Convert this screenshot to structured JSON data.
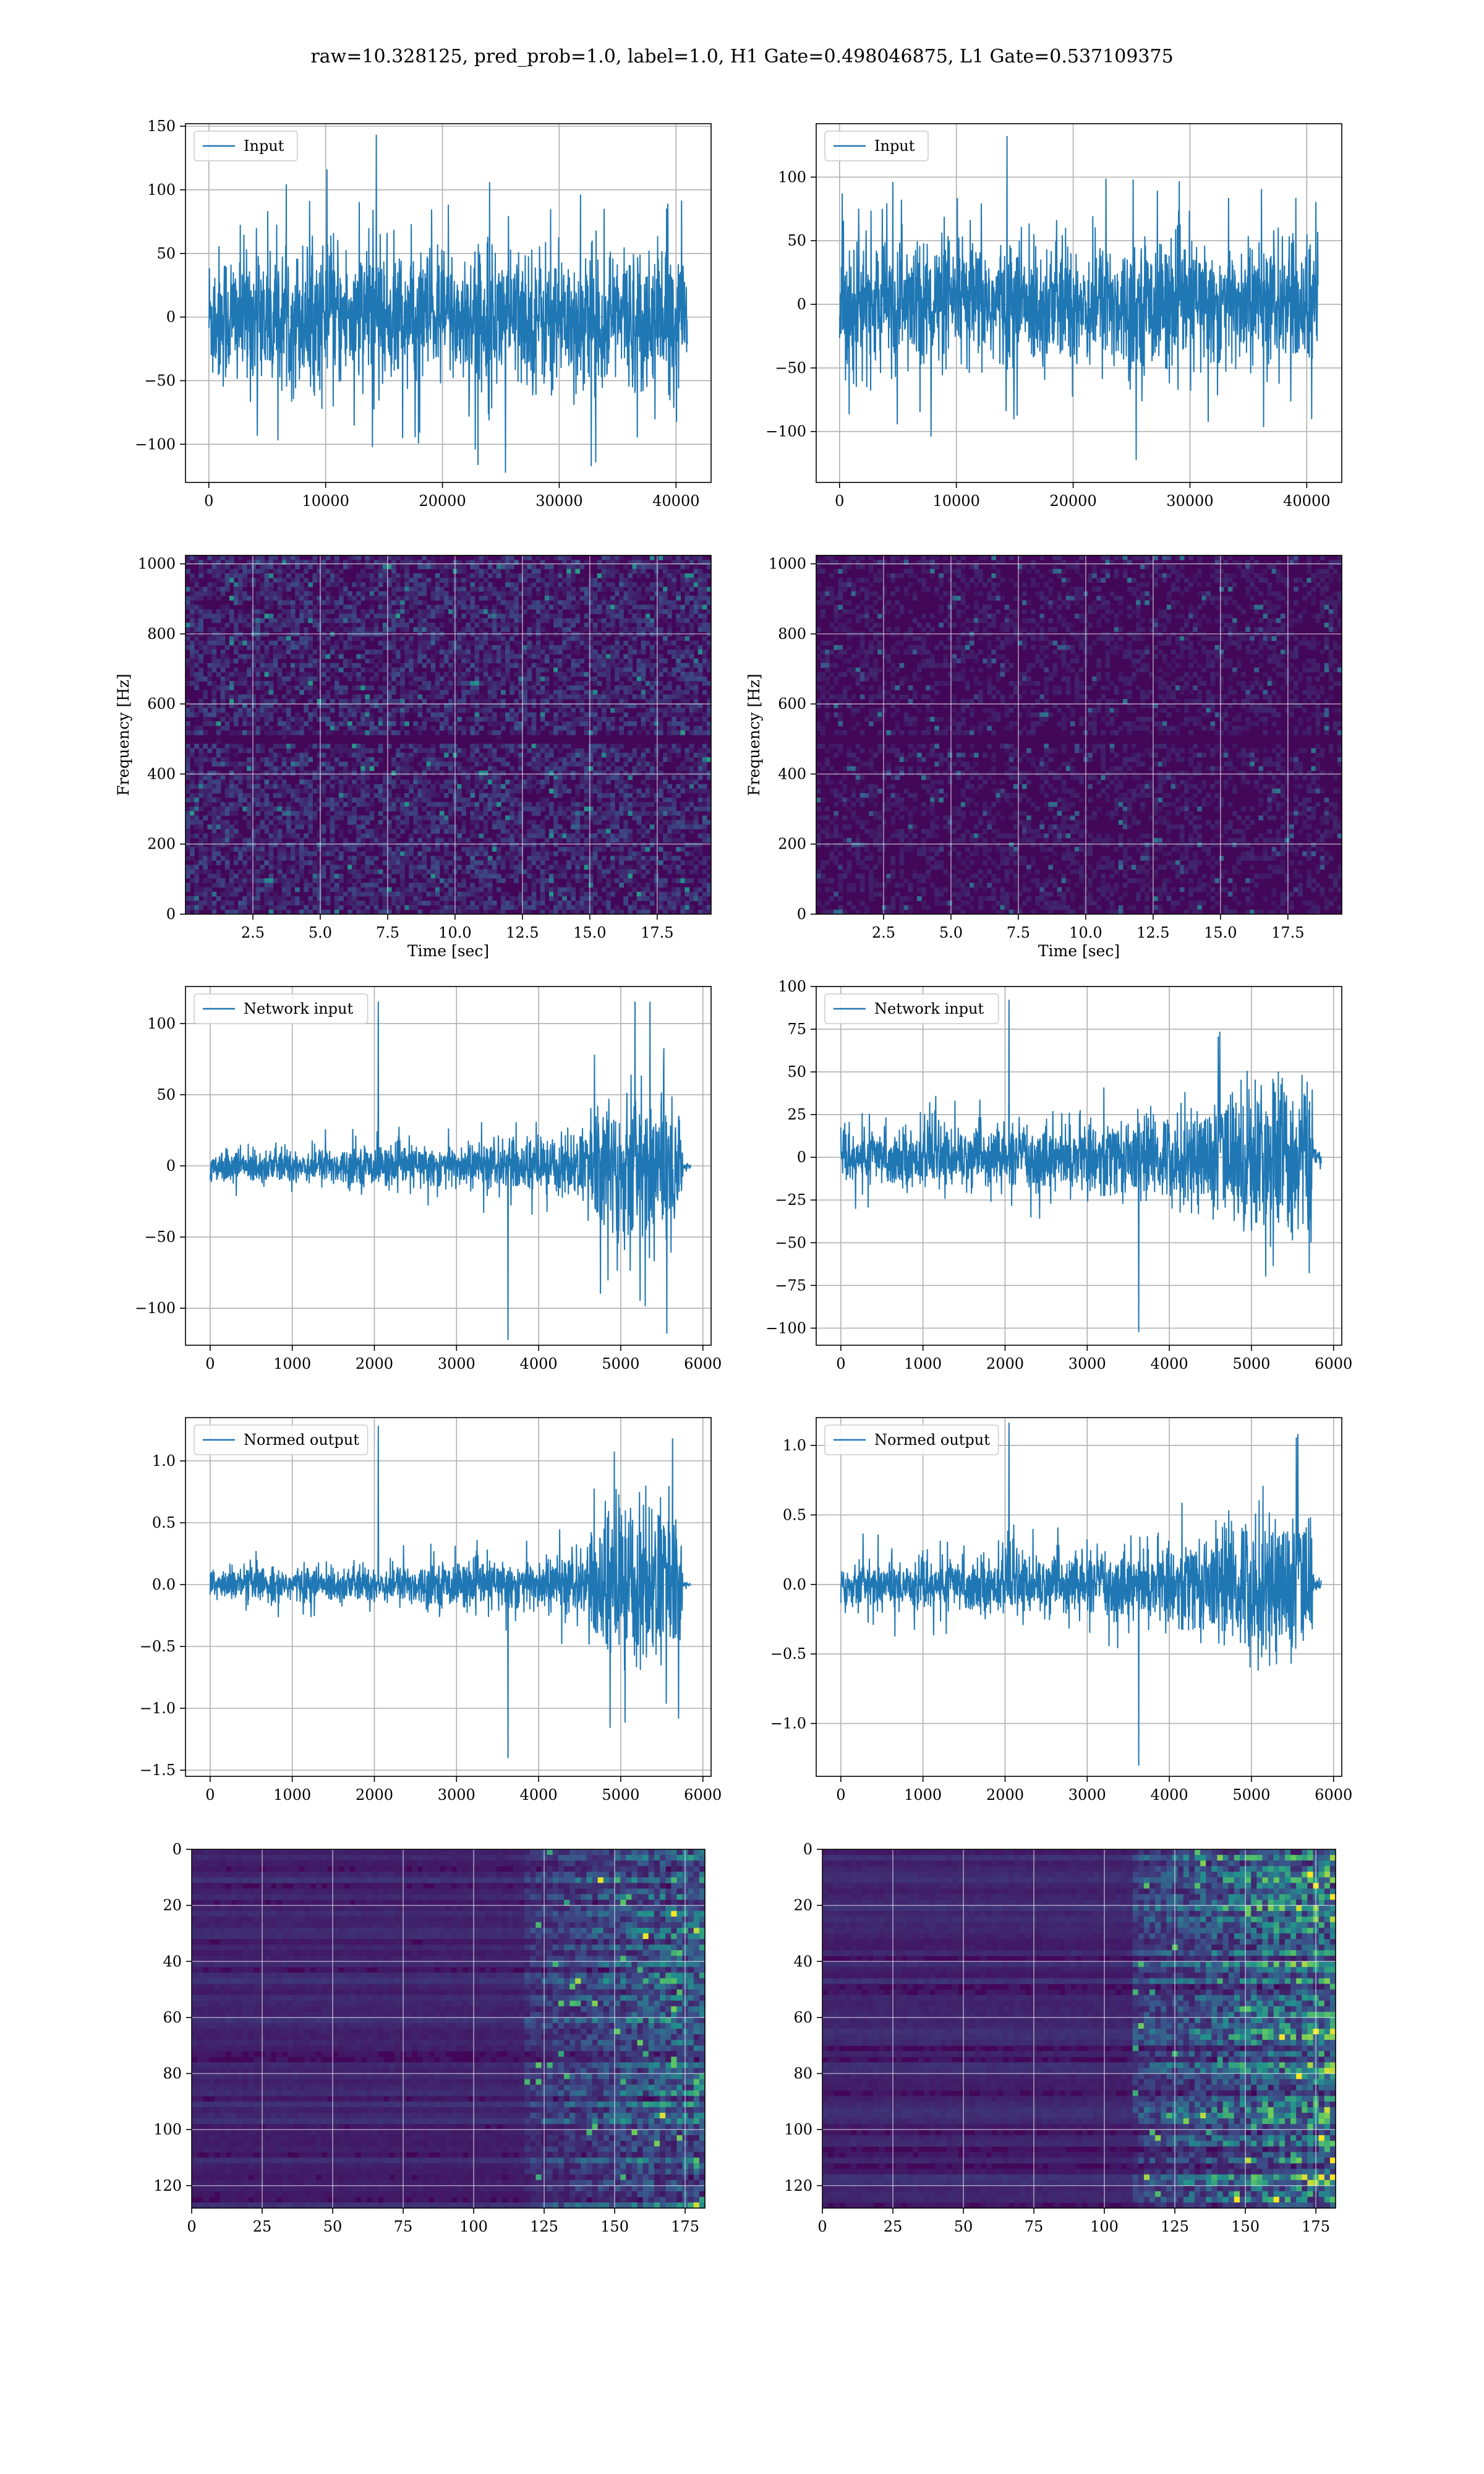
{
  "figure": {
    "title": "raw=10.328125, pred_prob=1.0, label=1.0, H1 Gate=0.498046875, L1 Gate=0.537109375"
  },
  "colors": {
    "line": "#1f77b4",
    "grid": "#b0b0b0",
    "colormap": "viridis"
  },
  "chart_data": [
    {
      "type": "line",
      "legend": "Input",
      "legend_placement": "upper-left",
      "grid": true,
      "xlim": [
        -2000,
        43000
      ],
      "ylim": [
        -130,
        152
      ],
      "xticks": [
        0,
        10000,
        20000,
        30000,
        40000
      ],
      "yticks": [
        -100,
        -50,
        0,
        50,
        100,
        150
      ],
      "x": [
        0,
        40960
      ],
      "envelope": {
        "typical_amplitude": 65,
        "max": 143,
        "min": -122
      }
    },
    {
      "type": "line",
      "legend": "Input",
      "legend_placement": "upper-left",
      "grid": true,
      "xlim": [
        -2000,
        43000
      ],
      "ylim": [
        -140,
        142
      ],
      "xticks": [
        0,
        10000,
        20000,
        30000,
        40000
      ],
      "yticks": [
        -100,
        -50,
        0,
        50,
        100
      ],
      "x": [
        0,
        40960
      ],
      "envelope": {
        "typical_amplitude": 60,
        "max": 132,
        "min": -122
      }
    },
    {
      "type": "heatmap",
      "xlabel": "Time [sec]",
      "ylabel": "Frequency [Hz]",
      "grid": true,
      "xlim": [
        0,
        19.5
      ],
      "ylim": [
        0,
        1024
      ],
      "xticks": [
        2.5,
        5.0,
        7.5,
        10.0,
        12.5,
        15.0,
        17.5
      ],
      "yticks": [
        0,
        200,
        400,
        600,
        800,
        1000
      ],
      "features": {
        "dark_band_hz": 500,
        "noise_level": 0.35
      }
    },
    {
      "type": "heatmap",
      "xlabel": "Time [sec]",
      "ylabel": "Frequency [Hz]",
      "grid": true,
      "xlim": [
        0,
        19.5
      ],
      "ylim": [
        0,
        1024
      ],
      "xticks": [
        2.5,
        5.0,
        7.5,
        10.0,
        12.5,
        15.0,
        17.5
      ],
      "yticks": [
        0,
        200,
        400,
        600,
        800,
        1000
      ],
      "features": {
        "dark_band_hz": 500,
        "noise_level": 0.22
      }
    },
    {
      "type": "line",
      "legend": "Network input",
      "legend_placement": "upper-left",
      "grid": true,
      "xlim": [
        -300,
        6100
      ],
      "ylim": [
        -126,
        126
      ],
      "xticks": [
        0,
        1000,
        2000,
        3000,
        4000,
        5000,
        6000
      ],
      "yticks": [
        -100,
        -50,
        0,
        50,
        100
      ],
      "x": [
        0,
        5850
      ],
      "envelope": [
        {
          "x": 0,
          "amp": 14
        },
        {
          "x": 1000,
          "amp": 15
        },
        {
          "x": 2000,
          "amp": 16
        },
        {
          "x": 3000,
          "amp": 19
        },
        {
          "x": 4000,
          "amp": 23
        },
        {
          "x": 4600,
          "amp": 30
        },
        {
          "x": 4720,
          "amp": 60
        },
        {
          "x": 5000,
          "amp": 75
        },
        {
          "x": 5400,
          "amp": 70
        },
        {
          "x": 5730,
          "amp": 65
        },
        {
          "x": 5760,
          "amp": 3
        },
        {
          "x": 5850,
          "amp": 2
        }
      ],
      "max": 115,
      "min": -122
    },
    {
      "type": "line",
      "legend": "Network input",
      "legend_placement": "upper-left",
      "grid": true,
      "xlim": [
        -300,
        6100
      ],
      "ylim": [
        -110,
        100
      ],
      "xticks": [
        0,
        1000,
        2000,
        3000,
        4000,
        5000,
        6000
      ],
      "yticks": [
        -100,
        -75,
        -50,
        -25,
        0,
        25,
        50,
        75,
        100
      ],
      "x": [
        0,
        5850
      ],
      "envelope": [
        {
          "x": 0,
          "amp": 18
        },
        {
          "x": 1000,
          "amp": 20
        },
        {
          "x": 2000,
          "amp": 22
        },
        {
          "x": 3000,
          "amp": 24
        },
        {
          "x": 4000,
          "amp": 30
        },
        {
          "x": 4600,
          "amp": 42
        },
        {
          "x": 5000,
          "amp": 55
        },
        {
          "x": 5400,
          "amp": 58
        },
        {
          "x": 5730,
          "amp": 55
        },
        {
          "x": 5760,
          "amp": 6
        },
        {
          "x": 5850,
          "amp": 5
        }
      ],
      "max": 92,
      "min": -102
    },
    {
      "type": "line",
      "legend": "Normed output",
      "legend_placement": "upper-left",
      "grid": true,
      "xlim": [
        -300,
        6100
      ],
      "ylim": [
        -1.55,
        1.35
      ],
      "xticks": [
        0,
        1000,
        2000,
        3000,
        4000,
        5000,
        6000
      ],
      "yticks": [
        -1.5,
        -1.0,
        -0.5,
        0.0,
        0.5,
        1.0
      ],
      "x": [
        0,
        5850
      ],
      "envelope": [
        {
          "x": 0,
          "amp": 0.16
        },
        {
          "x": 1000,
          "amp": 0.17
        },
        {
          "x": 2000,
          "amp": 0.18
        },
        {
          "x": 3000,
          "amp": 0.21
        },
        {
          "x": 4000,
          "amp": 0.26
        },
        {
          "x": 4600,
          "amp": 0.34
        },
        {
          "x": 4720,
          "amp": 0.68
        },
        {
          "x": 5000,
          "amp": 0.85
        },
        {
          "x": 5400,
          "amp": 0.8
        },
        {
          "x": 5730,
          "amp": 0.74
        },
        {
          "x": 5760,
          "amp": 0.03
        },
        {
          "x": 5850,
          "amp": 0.02
        }
      ],
      "max": 1.28,
      "min": -1.4
    },
    {
      "type": "line",
      "legend": "Normed output",
      "legend_placement": "upper-left",
      "grid": true,
      "xlim": [
        -300,
        6100
      ],
      "ylim": [
        -1.38,
        1.2
      ],
      "xticks": [
        0,
        1000,
        2000,
        3000,
        4000,
        5000,
        6000
      ],
      "yticks": [
        -1.0,
        -0.5,
        0.0,
        0.5,
        1.0
      ],
      "x": [
        0,
        5850
      ],
      "envelope": [
        {
          "x": 0,
          "amp": 0.2
        },
        {
          "x": 1000,
          "amp": 0.22
        },
        {
          "x": 2000,
          "amp": 0.24
        },
        {
          "x": 3000,
          "amp": 0.27
        },
        {
          "x": 4000,
          "amp": 0.33
        },
        {
          "x": 4600,
          "amp": 0.46
        },
        {
          "x": 5000,
          "amp": 0.62
        },
        {
          "x": 5400,
          "amp": 0.65
        },
        {
          "x": 5730,
          "amp": 0.6
        },
        {
          "x": 5760,
          "amp": 0.06
        },
        {
          "x": 5850,
          "amp": 0.05
        }
      ],
      "max": 1.16,
      "min": -1.3
    },
    {
      "type": "heatmap",
      "grid": true,
      "xlim": [
        0,
        182
      ],
      "ylim": [
        128,
        0
      ],
      "xticks": [
        0,
        25,
        50,
        75,
        100,
        125,
        150,
        175
      ],
      "yticks": [
        0,
        20,
        40,
        60,
        80,
        100,
        120
      ],
      "features": {
        "activity_starts_at": 118,
        "intensity": 0.55
      }
    },
    {
      "type": "heatmap",
      "grid": true,
      "xlim": [
        0,
        182
      ],
      "ylim": [
        128,
        0
      ],
      "xticks": [
        0,
        25,
        50,
        75,
        100,
        125,
        150,
        175
      ],
      "yticks": [
        0,
        20,
        40,
        60,
        80,
        100,
        120
      ],
      "features": {
        "activity_starts_at": 110,
        "intensity": 0.8
      }
    }
  ]
}
